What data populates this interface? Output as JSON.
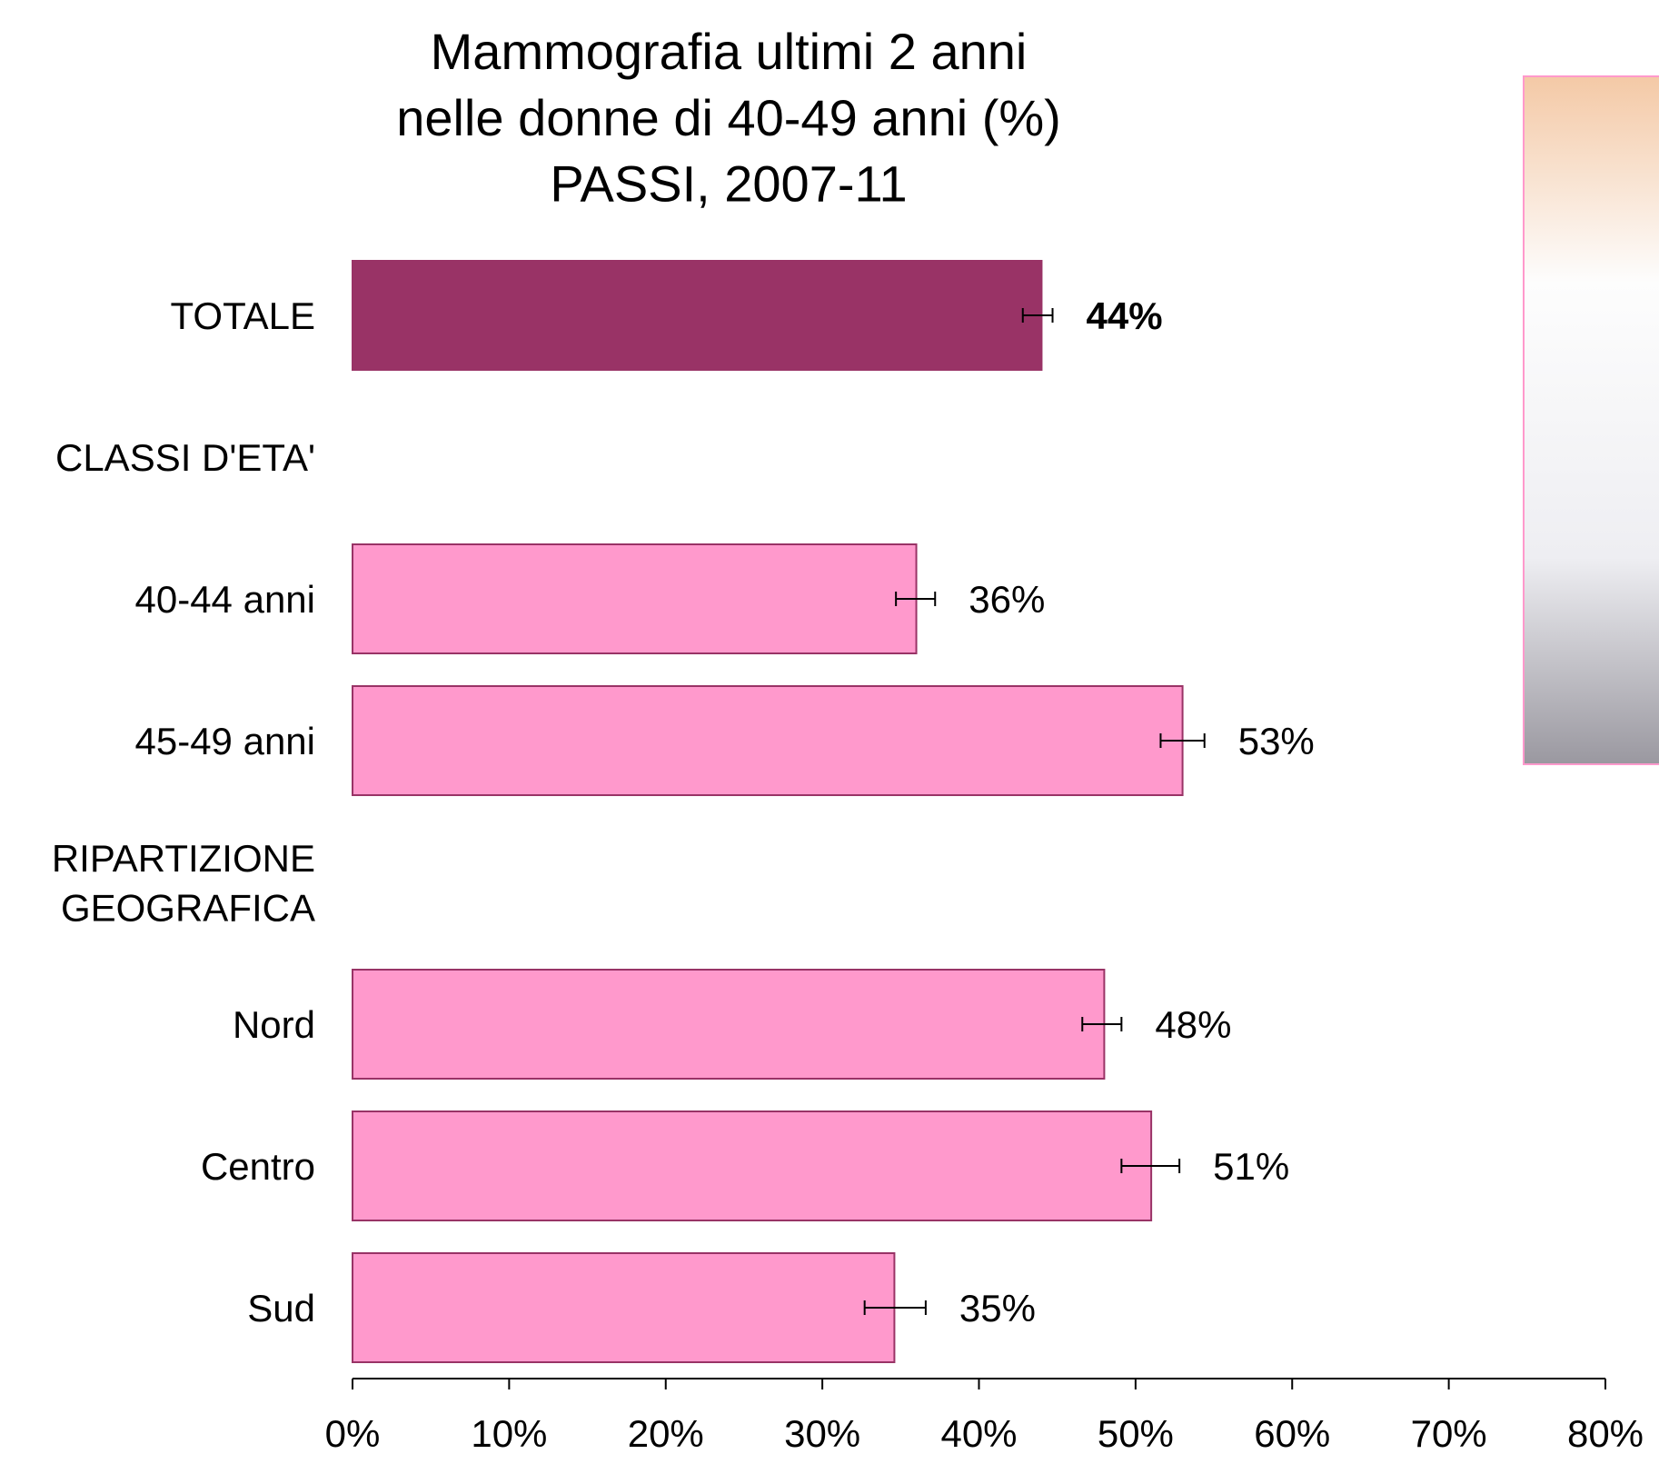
{
  "chart_data": {
    "type": "bar",
    "orientation": "horizontal",
    "title": "Mammografia ultimi 2 anni\nnelle donne di 40-49 anni (%)\nPASSI, 2007-11",
    "categories": [
      "TOTALE",
      "CLASSI D'ETA'",
      "40-44 anni",
      "45-49 anni",
      "RIPARTIZIONE\nGEOGRAFICA",
      "Nord",
      "Centro",
      "Sud"
    ],
    "values": [
      44,
      null,
      36,
      53,
      null,
      48,
      51,
      34.6
    ],
    "value_labels": [
      "44%",
      null,
      "36%",
      "53%",
      null,
      "48%",
      "51%",
      "35%"
    ],
    "ci_lower": [
      42.8,
      null,
      34.7,
      51.6,
      null,
      46.6,
      49.1,
      32.7
    ],
    "ci_upper": [
      44.7,
      null,
      37.2,
      54.4,
      null,
      49.1,
      52.8,
      36.6
    ],
    "colors": [
      "#993366",
      null,
      "#ff99cc",
      "#ff99cc",
      null,
      "#ff99cc",
      "#ff99cc",
      "#ff99cc"
    ],
    "xlim": [
      0,
      80
    ],
    "xticks": [
      {
        "value": 0,
        "label": "0%"
      },
      {
        "value": 10,
        "label": "10%"
      },
      {
        "value": 20,
        "label": "20%"
      },
      {
        "value": 30,
        "label": "30%"
      },
      {
        "value": 40,
        "label": "40%"
      },
      {
        "value": 50,
        "label": "50%"
      },
      {
        "value": 60,
        "label": "60%"
      },
      {
        "value": 70,
        "label": "70%"
      },
      {
        "value": 80,
        "label": "80%"
      }
    ],
    "grid": false
  }
}
